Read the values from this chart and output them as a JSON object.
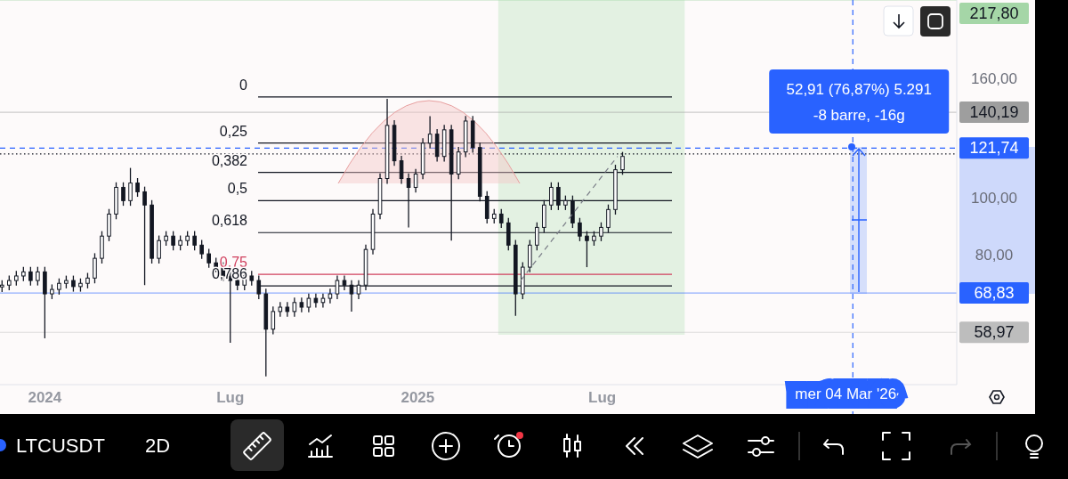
{
  "chart_data": {
    "type": "candlestick",
    "title": "LTCUSDT",
    "subtitle": "2D",
    "x": [
      "2023-11-20",
      "2023-11-27",
      "2023-12-04",
      "2023-12-11",
      "2023-12-18",
      "2023-12-25",
      "2024-01-01",
      "2024-01-08",
      "2024-01-15",
      "2024-01-22",
      "2024-01-29",
      "2024-02-05",
      "2024-02-12",
      "2024-02-19",
      "2024-02-26",
      "2024-03-04",
      "2024-03-11",
      "2024-03-18",
      "2024-03-25",
      "2024-04-01",
      "2024-04-08",
      "2024-04-15",
      "2024-04-22",
      "2024-04-29",
      "2024-05-06",
      "2024-05-13",
      "2024-05-20",
      "2024-05-27",
      "2024-06-03",
      "2024-06-10",
      "2024-06-17",
      "2024-06-24",
      "2024-07-01",
      "2024-07-08",
      "2024-07-15",
      "2024-07-22",
      "2024-07-29",
      "2024-08-05",
      "2024-08-12",
      "2024-08-19",
      "2024-08-26",
      "2024-09-02",
      "2024-09-09",
      "2024-09-16",
      "2024-09-23",
      "2024-09-30",
      "2024-10-07",
      "2024-10-14",
      "2024-10-21",
      "2024-10-28",
      "2024-11-04",
      "2024-11-11",
      "2024-11-18",
      "2024-11-25",
      "2024-12-02",
      "2024-12-09",
      "2024-12-16",
      "2024-12-23",
      "2024-12-30",
      "2025-01-06",
      "2025-01-13",
      "2025-01-20",
      "2025-01-27",
      "2025-02-03",
      "2025-02-10",
      "2025-02-17",
      "2025-02-24",
      "2025-03-03",
      "2025-03-10",
      "2025-03-17",
      "2025-03-24",
      "2025-03-31",
      "2025-04-07",
      "2025-04-14",
      "2025-04-21",
      "2025-04-28",
      "2025-05-05",
      "2025-05-12",
      "2025-05-19",
      "2025-05-26",
      "2025-06-02",
      "2025-06-09",
      "2025-06-16",
      "2025-06-23",
      "2025-06-30",
      "2025-07-07",
      "2025-07-14",
      "2025-07-21"
    ],
    "series": [
      {
        "color": "#131722",
        "ohlc": [
          [
            70.5,
            72.4,
            69.1,
            71.0
          ],
          [
            71.0,
            73.7,
            69.6,
            72.3
          ],
          [
            72.3,
            75.1,
            70.9,
            73.6
          ],
          [
            73.6,
            76.3,
            72.1,
            74.8
          ],
          [
            74.8,
            76.3,
            70.9,
            72.3
          ],
          [
            72.3,
            76.3,
            70.9,
            74.8
          ],
          [
            74.8,
            76.3,
            57.6,
            68.6
          ],
          [
            68.6,
            71.2,
            67.2,
            69.8
          ],
          [
            69.8,
            72.9,
            68.4,
            71.5
          ],
          [
            71.5,
            73.7,
            70.1,
            72.3
          ],
          [
            72.3,
            73.7,
            69.2,
            70.6
          ],
          [
            70.6,
            72.9,
            69.2,
            71.5
          ],
          [
            71.5,
            74.5,
            70.1,
            73.0
          ],
          [
            73.0,
            80.5,
            71.5,
            78.9
          ],
          [
            78.9,
            87.8,
            77.3,
            86.1
          ],
          [
            86.1,
            95.8,
            84.4,
            93.9
          ],
          [
            93.9,
            106.4,
            92.0,
            104.3
          ],
          [
            104.3,
            106.4,
            97.0,
            99.0
          ],
          [
            99.0,
            112.6,
            97.0,
            106.1
          ],
          [
            106.1,
            108.2,
            100.5,
            102.5
          ],
          [
            102.5,
            104.6,
            71.0,
            97.3
          ],
          [
            97.3,
            99.2,
            77.3,
            78.9
          ],
          [
            78.9,
            86.3,
            77.3,
            84.6
          ],
          [
            84.6,
            87.8,
            82.9,
            86.1
          ],
          [
            86.1,
            87.8,
            81.4,
            83.1
          ],
          [
            83.1,
            86.3,
            81.4,
            84.6
          ],
          [
            84.6,
            87.8,
            82.9,
            86.1
          ],
          [
            86.1,
            87.8,
            81.4,
            83.1
          ],
          [
            83.1,
            84.8,
            78.7,
            80.3
          ],
          [
            80.3,
            81.9,
            76.0,
            77.5
          ],
          [
            77.5,
            79.1,
            74.7,
            76.2
          ],
          [
            76.2,
            77.7,
            72.1,
            73.6
          ],
          [
            73.6,
            75.1,
            56.6,
            72.3
          ],
          [
            72.3,
            73.7,
            69.6,
            71.0
          ],
          [
            71.0,
            75.1,
            69.6,
            73.6
          ],
          [
            73.6,
            75.1,
            70.9,
            72.3
          ],
          [
            72.3,
            73.7,
            67.2,
            68.6
          ],
          [
            68.6,
            70.0,
            49.6,
            59.7
          ],
          [
            59.7,
            65.3,
            58.5,
            64.0
          ],
          [
            64.0,
            66.4,
            62.7,
            65.1
          ],
          [
            65.1,
            66.4,
            62.7,
            64.0
          ],
          [
            64.0,
            67.6,
            62.7,
            66.3
          ],
          [
            66.3,
            67.6,
            63.8,
            65.1
          ],
          [
            65.1,
            68.7,
            63.8,
            67.4
          ],
          [
            67.4,
            68.7,
            65.0,
            66.3
          ],
          [
            66.3,
            68.7,
            65.0,
            67.4
          ],
          [
            67.4,
            70.0,
            66.1,
            68.6
          ],
          [
            68.6,
            73.7,
            67.2,
            72.3
          ],
          [
            72.3,
            73.7,
            69.6,
            71.0
          ],
          [
            71.0,
            72.4,
            64.0,
            68.6
          ],
          [
            68.6,
            72.4,
            67.2,
            71.0
          ],
          [
            71.0,
            83.3,
            69.6,
            81.7
          ],
          [
            81.7,
            95.8,
            80.1,
            93.9
          ],
          [
            93.9,
            110.2,
            92.0,
            108.0
          ],
          [
            108.0,
            147.8,
            105.8,
            133.1
          ],
          [
            133.1,
            135.8,
            113.5,
            115.8
          ],
          [
            115.8,
            118.1,
            105.8,
            108.0
          ],
          [
            108.0,
            110.2,
            89.1,
            104.3
          ],
          [
            104.3,
            112.1,
            102.2,
            109.9
          ],
          [
            109.9,
            126.6,
            107.7,
            124.1
          ],
          [
            124.1,
            138.0,
            121.6,
            128.6
          ],
          [
            128.6,
            131.2,
            115.4,
            117.8
          ],
          [
            117.8,
            133.4,
            115.4,
            130.8
          ],
          [
            130.8,
            133.4,
            84.6,
            109.9
          ],
          [
            109.9,
            122.3,
            107.7,
            119.9
          ],
          [
            119.9,
            138.1,
            117.5,
            135.4
          ],
          [
            135.4,
            138.1,
            119.6,
            122.0
          ],
          [
            122.0,
            124.4,
            98.7,
            100.7
          ],
          [
            100.7,
            102.7,
            90.5,
            92.3
          ],
          [
            92.3,
            95.8,
            90.5,
            93.9
          ],
          [
            93.9,
            95.8,
            88.9,
            90.7
          ],
          [
            90.7,
            92.5,
            81.4,
            83.1
          ],
          [
            83.1,
            84.8,
            62.9,
            68.6
          ],
          [
            68.6,
            77.7,
            67.2,
            76.2
          ],
          [
            76.2,
            84.8,
            74.7,
            83.1
          ],
          [
            83.1,
            90.9,
            81.4,
            89.1
          ],
          [
            89.1,
            99.2,
            87.3,
            97.3
          ],
          [
            97.3,
            106.4,
            95.4,
            104.3
          ],
          [
            104.3,
            106.4,
            95.4,
            97.3
          ],
          [
            97.3,
            101.0,
            95.4,
            99.0
          ],
          [
            99.0,
            101.0,
            88.9,
            90.7
          ],
          [
            90.7,
            92.5,
            84.4,
            86.1
          ],
          [
            86.1,
            87.8,
            76.2,
            84.6
          ],
          [
            84.6,
            87.8,
            82.9,
            86.1
          ],
          [
            86.1,
            90.9,
            84.4,
            89.1
          ],
          [
            89.1,
            97.5,
            87.3,
            95.6
          ],
          [
            95.6,
            114.0,
            93.7,
            111.8
          ],
          [
            111.8,
            119.9,
            109.6,
            117.8
          ]
        ]
      },
      {
        "type": "line",
        "color": "#787b86",
        "line_style": "dashed",
        "x": [
          "2025-04-12",
          "2025-07-16"
        ],
        "values": [
          72.3,
          117.8
        ]
      }
    ],
    "log": true,
    "xlim": [
      "2023-11-18",
      "2026-06-14"
    ],
    "ylim": [
      48,
      218
    ],
    "xticks": [
      {
        "value": "2024-01-01",
        "label": "2024"
      },
      {
        "value": "2024-07-01",
        "label": "Lug"
      },
      {
        "value": "2025-01-01",
        "label": "2025"
      },
      {
        "value": "2025-07-01",
        "label": "Lug"
      }
    ],
    "yticks": [
      {
        "value": 80,
        "label": "80,00"
      },
      {
        "value": 100,
        "label": "100,00"
      },
      {
        "value": 160,
        "label": "160,00"
      }
    ],
    "ref_lines": [
      {
        "axis": "y",
        "value": 148.9,
        "color": "#131722"
      },
      {
        "axis": "y",
        "value": 124.2,
        "color": "#131722"
      },
      {
        "axis": "y",
        "value": 110.6,
        "color": "#131722"
      },
      {
        "axis": "y",
        "value": 99.0,
        "color": "#131722"
      },
      {
        "axis": "y",
        "value": 87.3,
        "color": "#131722"
      },
      {
        "axis": "y",
        "value": 74.1,
        "color": "#d0405e"
      },
      {
        "axis": "y",
        "value": 70.8,
        "color": "#131722"
      },
      {
        "axis": "y",
        "value": 140.19,
        "label": "140,19",
        "color": "#9e9e9e",
        "line_style": "solid"
      },
      {
        "axis": "y",
        "value": 121.74,
        "label": "121,74",
        "color": "#2962ff",
        "line_style": "dashed"
      },
      {
        "axis": "y",
        "value": 119.0,
        "color": "#131722",
        "line_style": "dotted"
      },
      {
        "axis": "y",
        "value": 217.8,
        "label": "217,80",
        "color": "#a5d6a7",
        "line_style": "solid"
      },
      {
        "axis": "y",
        "value": 68.83,
        "label": "68,83",
        "color": "#2962ff",
        "line_style": "solid"
      },
      {
        "axis": "y",
        "value": 58.97,
        "label": "58,97",
        "color": "#bdbdbd",
        "line_style": "solid"
      },
      {
        "axis": "x",
        "value": "2026-03-04",
        "label": "mer 04 Mar '26",
        "color": "#2962ff",
        "line_style": "dashed"
      }
    ],
    "bands": [
      {
        "axis": "x",
        "from": "2025-03-21",
        "to": "2025-09-20",
        "color": "#dcefdc"
      }
    ],
    "annotations": [
      "52,91 (76,87%) 5.291",
      "-8 barre, -16g",
      "0",
      "0,25",
      "0,382",
      "0,5",
      "0,618",
      "0,75",
      "0,786"
    ]
  }
}
